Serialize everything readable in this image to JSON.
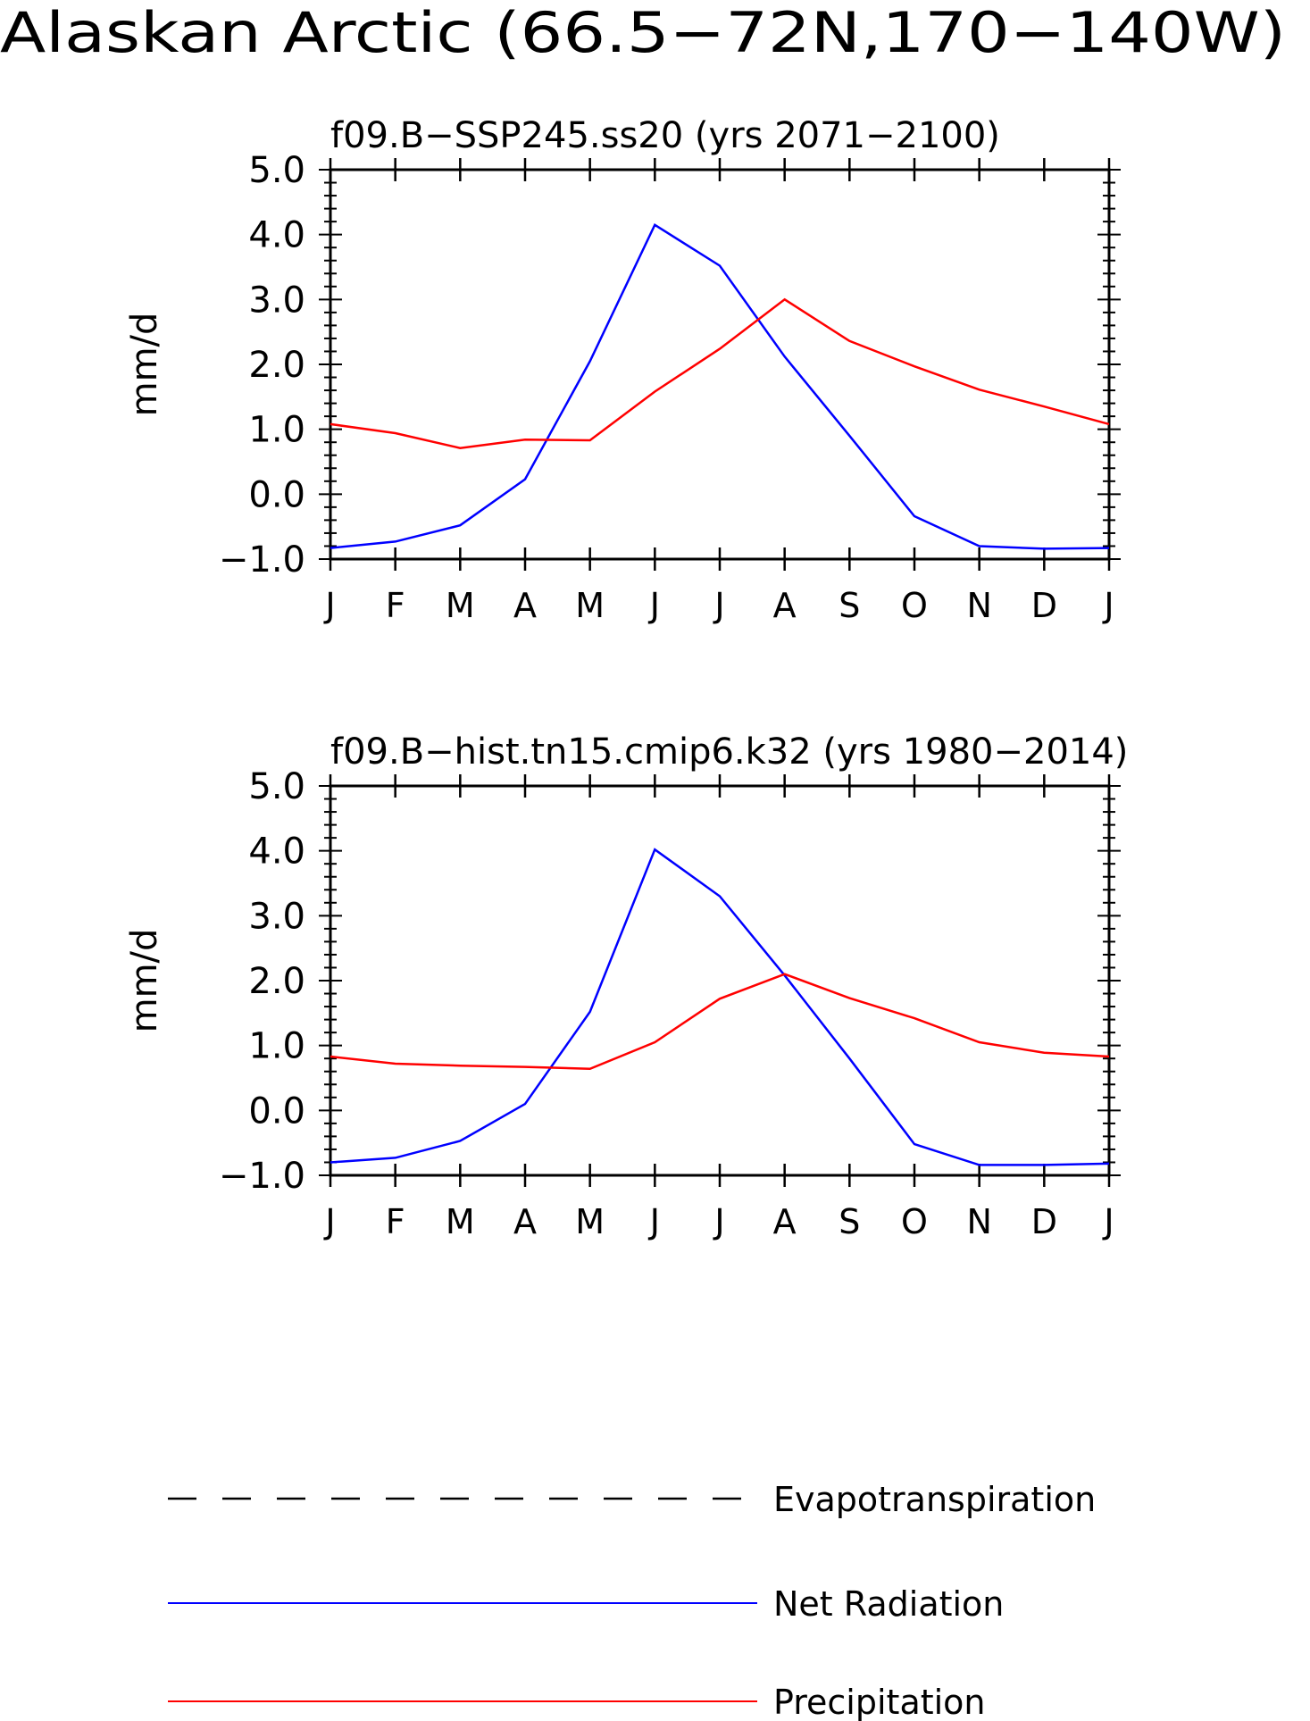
{
  "figure": {
    "title": "Alaskan Arctic (66.5−72N,170−140W)"
  },
  "chart_data": [
    {
      "type": "line",
      "title": "f09.B−SSP245.ss20 (yrs 2071−2100)",
      "xlabel": "",
      "ylabel": "mm/d",
      "categories": [
        "J",
        "F",
        "M",
        "A",
        "M",
        "J",
        "J",
        "A",
        "S",
        "O",
        "N",
        "D",
        "J"
      ],
      "yticks": [
        "5.0",
        "4.0",
        "3.0",
        "2.0",
        "1.0",
        "0.0",
        "−1.0"
      ],
      "ylim": [
        -1.0,
        5.0
      ],
      "grid": false,
      "series": [
        {
          "name": "Net Radiation",
          "color": "#0000ff",
          "values": [
            -0.83,
            -0.73,
            -0.48,
            0.23,
            2.05,
            4.15,
            3.52,
            2.12,
            0.9,
            -0.34,
            -0.8,
            -0.84,
            -0.83
          ]
        },
        {
          "name": "Precipitation",
          "color": "#ff0000",
          "values": [
            1.08,
            0.94,
            0.71,
            0.84,
            0.83,
            1.58,
            2.24,
            3.0,
            2.36,
            1.97,
            1.61,
            1.35,
            1.08
          ]
        }
      ]
    },
    {
      "type": "line",
      "title": "f09.B−hist.tn15.cmip6.k32 (yrs 1980−2014)",
      "xlabel": "",
      "ylabel": "mm/d",
      "categories": [
        "J",
        "F",
        "M",
        "A",
        "M",
        "J",
        "J",
        "A",
        "S",
        "O",
        "N",
        "D",
        "J"
      ],
      "yticks": [
        "5.0",
        "4.0",
        "3.0",
        "2.0",
        "1.0",
        "0.0",
        "−1.0"
      ],
      "ylim": [
        -1.0,
        5.0
      ],
      "grid": false,
      "series": [
        {
          "name": "Net Radiation",
          "color": "#0000ff",
          "values": [
            -0.8,
            -0.73,
            -0.47,
            0.1,
            1.52,
            4.02,
            3.3,
            2.08,
            0.8,
            -0.52,
            -0.84,
            -0.84,
            -0.82
          ]
        },
        {
          "name": "Precipitation",
          "color": "#ff0000",
          "values": [
            0.83,
            0.72,
            0.69,
            0.67,
            0.64,
            1.05,
            1.72,
            2.1,
            1.73,
            1.42,
            1.05,
            0.89,
            0.83
          ]
        }
      ]
    }
  ],
  "legend": {
    "position": "bottom-center",
    "items": [
      {
        "label": "Evapotranspiration",
        "style": "dashed",
        "color": "#000000"
      },
      {
        "label": "Net Radiation",
        "style": "solid",
        "color": "#0000ff"
      },
      {
        "label": "Precipitation",
        "style": "solid",
        "color": "#ff0000"
      }
    ]
  }
}
